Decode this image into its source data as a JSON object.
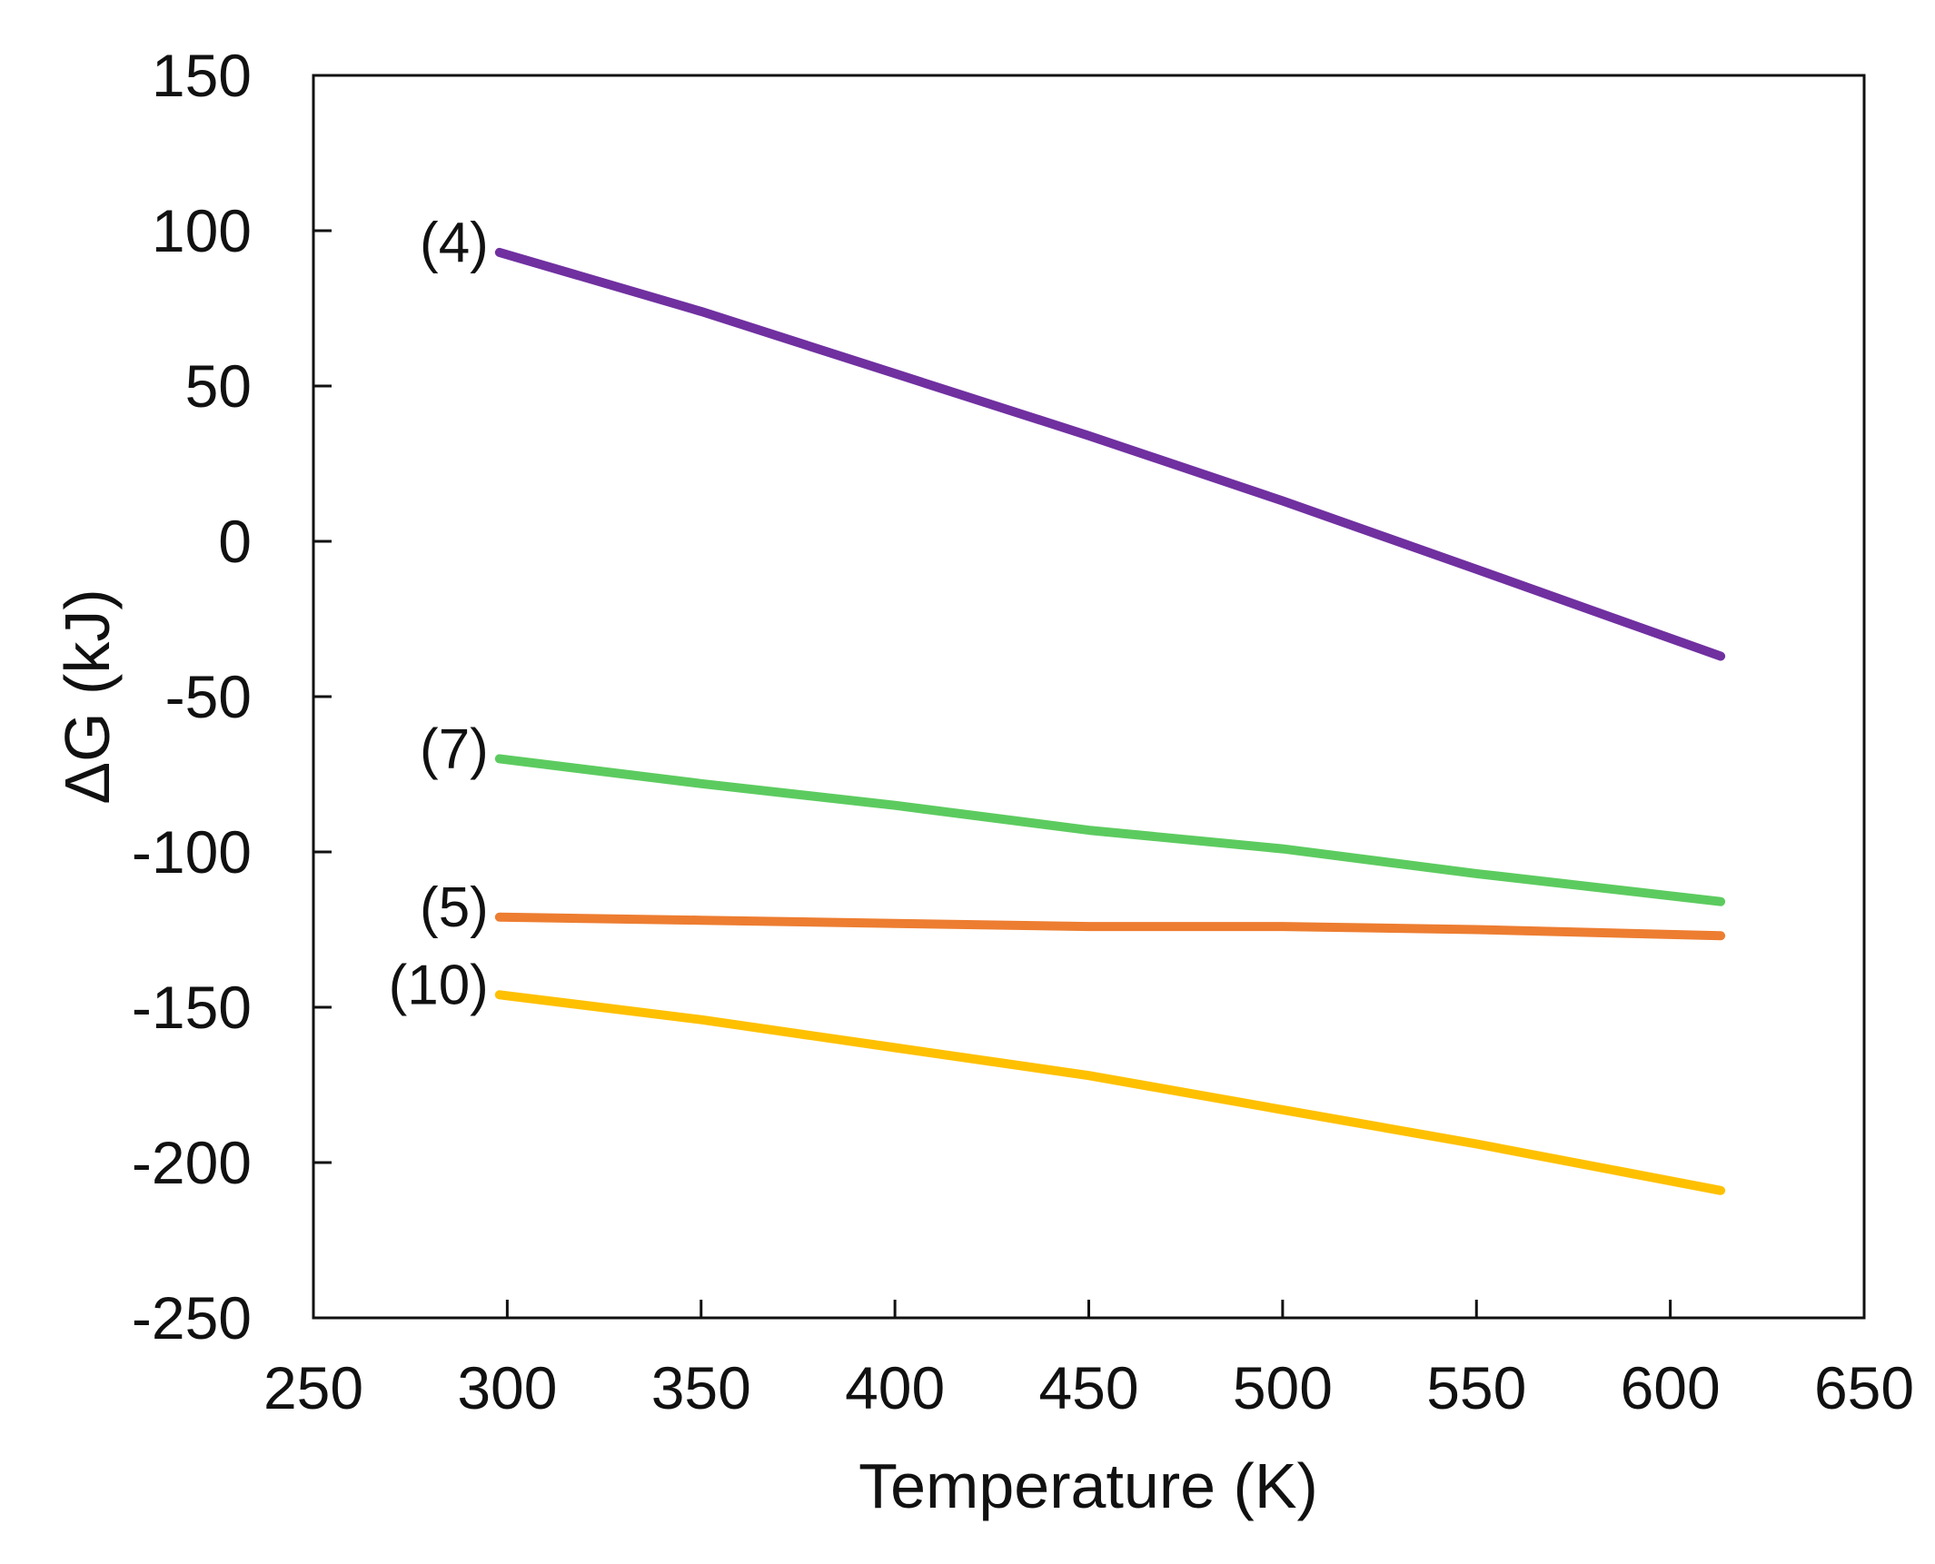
{
  "chart_data": {
    "type": "line",
    "title": "",
    "xlabel": "Temperature (K)",
    "ylabel": "ΔG  (kJ)",
    "xlim": [
      250,
      650
    ],
    "ylim": [
      -250,
      150
    ],
    "xticks": [
      250,
      300,
      350,
      400,
      450,
      500,
      550,
      600,
      650
    ],
    "yticks": [
      150,
      100,
      50,
      0,
      -50,
      -100,
      -150,
      -200,
      -250
    ],
    "grid": false,
    "series": [
      {
        "name": "(4)",
        "color": "#7030A0",
        "x": [
          298,
          350,
          400,
          450,
          500,
          550,
          613
        ],
        "values": [
          93,
          74,
          54,
          34,
          13,
          -9,
          -37
        ]
      },
      {
        "name": "(7)",
        "color": "#5CCB5F",
        "x": [
          298,
          350,
          400,
          450,
          500,
          550,
          613
        ],
        "values": [
          -70,
          -78,
          -85,
          -93,
          -99,
          -107,
          -116
        ]
      },
      {
        "name": "(5)",
        "color": "#ED7D31",
        "x": [
          298,
          350,
          400,
          450,
          500,
          550,
          613
        ],
        "values": [
          -121,
          -122,
          -123,
          -124,
          -124,
          -125,
          -127
        ]
      },
      {
        "name": "(10)",
        "color": "#FFC000",
        "x": [
          298,
          350,
          400,
          450,
          500,
          550,
          613
        ],
        "values": [
          -146,
          -154,
          -163,
          -172,
          -183,
          -194,
          -209
        ]
      }
    ]
  }
}
